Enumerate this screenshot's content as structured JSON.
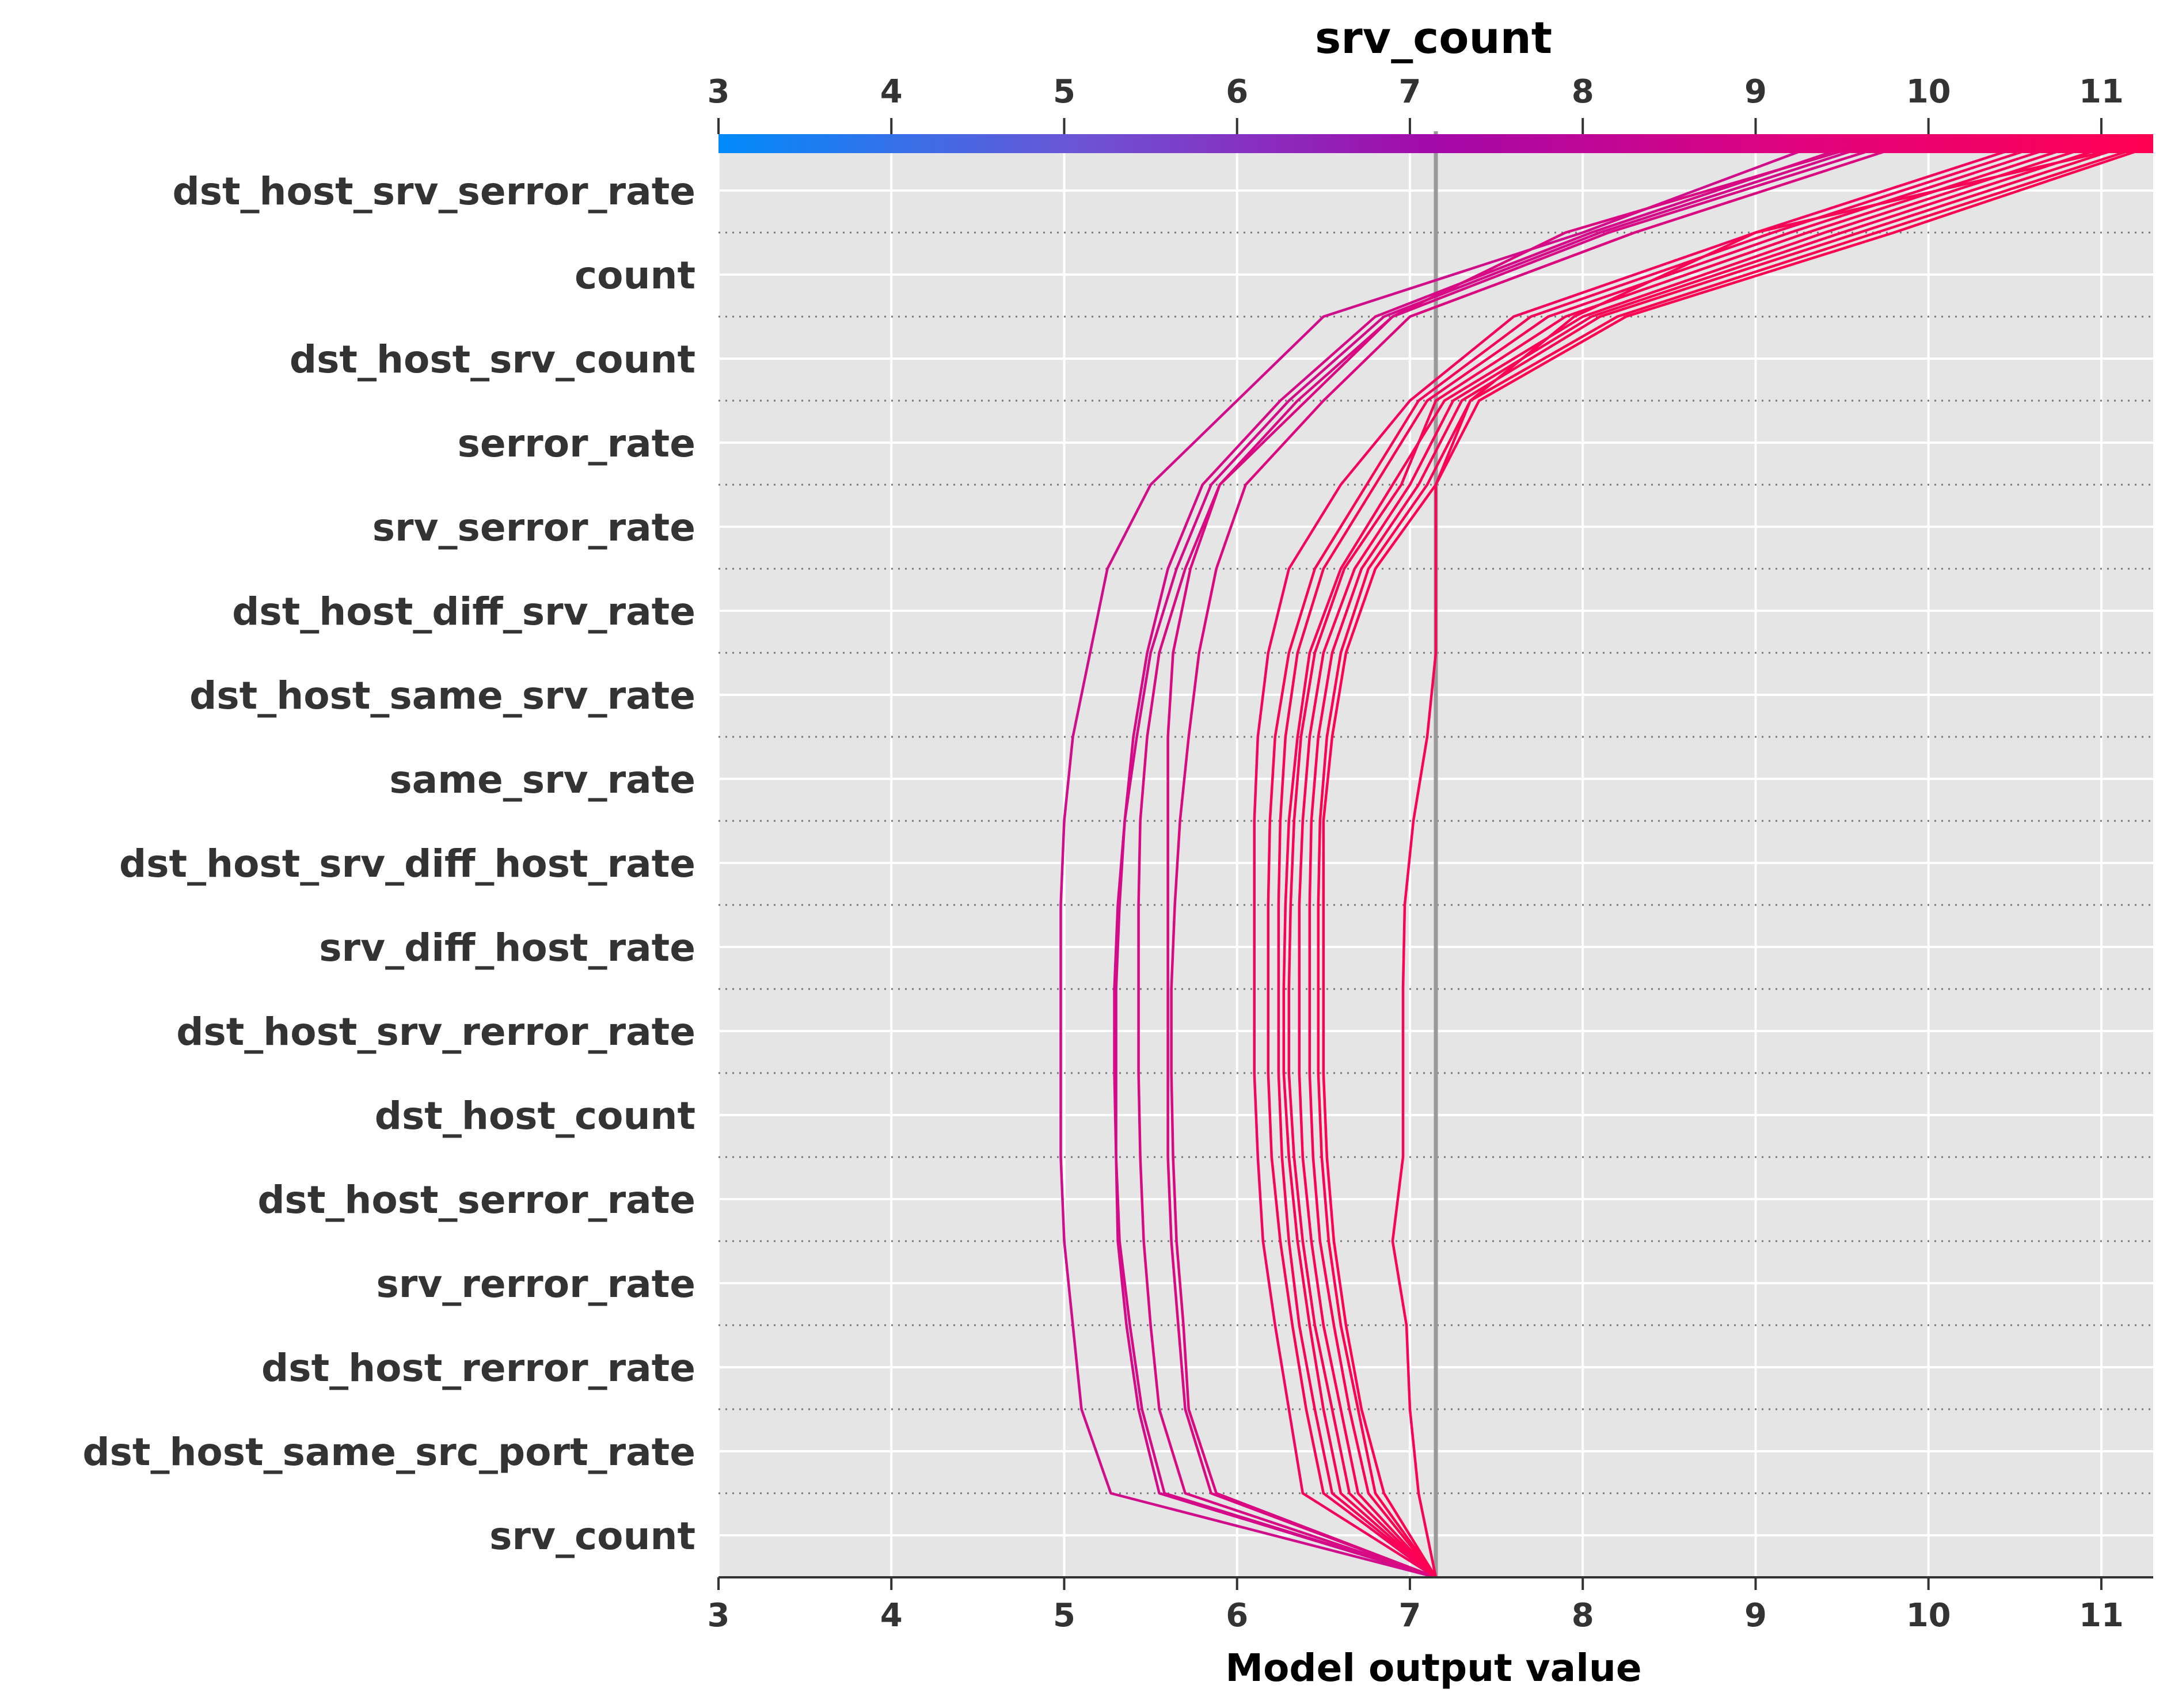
{
  "chart_data": {
    "type": "line",
    "subtype": "shap-decision-plot",
    "title": "srv_count",
    "xlabel": "Model output value",
    "xlim": [
      3,
      11.3
    ],
    "xticks": [
      3,
      4,
      5,
      6,
      7,
      8,
      9,
      10,
      11
    ],
    "xtick_labels": [
      "3",
      "4",
      "5",
      "6",
      "7",
      "8",
      "9",
      "10",
      "11"
    ],
    "base_value": 7.15,
    "grid": true,
    "colorbar": {
      "position": "top",
      "feature": "srv_count",
      "range": [
        3,
        11.3
      ],
      "colors": [
        "#008bfb",
        "#6b55d5",
        "#a409a9",
        "#e0037e",
        "#ff0052"
      ]
    },
    "features": [
      "dst_host_srv_serror_rate",
      "count",
      "dst_host_srv_count",
      "serror_rate",
      "srv_serror_rate",
      "dst_host_diff_srv_rate",
      "dst_host_same_srv_rate",
      "same_srv_rate",
      "dst_host_srv_diff_host_rate",
      "srv_diff_host_rate",
      "dst_host_srv_rerror_rate",
      "dst_host_count",
      "dst_host_serror_rate",
      "srv_rerror_rate",
      "dst_host_rerror_rate",
      "dst_host_same_src_port_rate",
      "srv_count"
    ],
    "series": [
      {
        "color": "#d00d8a",
        "values": [
          9.3,
          8.0,
          6.5,
          6.0,
          5.5,
          5.25,
          5.15,
          5.05,
          5.0,
          4.98,
          4.98,
          4.98,
          4.98,
          5.0,
          5.05,
          5.1,
          5.27,
          7.15
        ]
      },
      {
        "color": "#d50a86",
        "values": [
          9.5,
          8.05,
          6.8,
          6.25,
          5.8,
          5.6,
          5.48,
          5.4,
          5.35,
          5.32,
          5.3,
          5.3,
          5.3,
          5.32,
          5.38,
          5.45,
          5.58,
          7.15
        ]
      },
      {
        "color": "#d30b88",
        "values": [
          9.6,
          8.1,
          6.85,
          6.3,
          5.85,
          5.65,
          5.5,
          5.42,
          5.35,
          5.31,
          5.29,
          5.29,
          5.3,
          5.31,
          5.36,
          5.43,
          5.55,
          7.15
        ]
      },
      {
        "color": "#d70a84",
        "values": [
          9.7,
          8.15,
          6.9,
          6.35,
          5.9,
          5.7,
          5.55,
          5.48,
          5.44,
          5.43,
          5.43,
          5.43,
          5.44,
          5.46,
          5.5,
          5.55,
          5.7,
          7.15
        ]
      },
      {
        "color": "#da0980",
        "values": [
          9.8,
          8.3,
          7.0,
          6.5,
          6.05,
          5.88,
          5.78,
          5.72,
          5.67,
          5.64,
          5.62,
          5.62,
          5.63,
          5.65,
          5.69,
          5.72,
          5.88,
          7.15
        ]
      },
      {
        "color": "#d90982",
        "values": [
          9.55,
          7.9,
          6.9,
          6.4,
          5.9,
          5.73,
          5.63,
          5.6,
          5.6,
          5.6,
          5.6,
          5.6,
          5.6,
          5.62,
          5.66,
          5.7,
          5.85,
          7.15
        ]
      },
      {
        "color": "#f4045f",
        "values": [
          10.5,
          9.0,
          7.6,
          7.0,
          6.6,
          6.3,
          6.18,
          6.12,
          6.1,
          6.1,
          6.1,
          6.1,
          6.12,
          6.15,
          6.22,
          6.3,
          6.38,
          7.15
        ]
      },
      {
        "color": "#f70359",
        "values": [
          10.7,
          9.2,
          7.8,
          7.1,
          6.8,
          6.5,
          6.35,
          6.28,
          6.25,
          6.24,
          6.24,
          6.24,
          6.26,
          6.3,
          6.36,
          6.45,
          6.55,
          7.15
        ]
      },
      {
        "color": "#fa0256",
        "values": [
          10.9,
          9.4,
          8.0,
          7.2,
          6.9,
          6.6,
          6.42,
          6.35,
          6.3,
          6.28,
          6.27,
          6.27,
          6.3,
          6.35,
          6.42,
          6.5,
          6.6,
          7.15
        ]
      },
      {
        "color": "#f90257",
        "values": [
          10.8,
          9.3,
          7.9,
          7.15,
          6.95,
          6.62,
          6.45,
          6.37,
          6.33,
          6.31,
          6.3,
          6.3,
          6.33,
          6.38,
          6.45,
          6.55,
          6.65,
          7.15
        ]
      },
      {
        "color": "#fc0154",
        "values": [
          11.0,
          9.5,
          8.05,
          7.25,
          7.0,
          6.68,
          6.5,
          6.42,
          6.38,
          6.36,
          6.36,
          6.36,
          6.38,
          6.43,
          6.5,
          6.6,
          6.7,
          7.15
        ]
      },
      {
        "color": "#fd0153",
        "values": [
          11.1,
          9.6,
          8.1,
          7.3,
          7.05,
          6.72,
          6.55,
          6.47,
          6.43,
          6.42,
          6.42,
          6.42,
          6.44,
          6.48,
          6.56,
          6.65,
          6.76,
          7.15
        ]
      },
      {
        "color": "#fe0152",
        "values": [
          11.2,
          9.7,
          8.2,
          7.35,
          7.1,
          6.76,
          6.6,
          6.52,
          6.48,
          6.47,
          6.47,
          6.47,
          6.49,
          6.53,
          6.6,
          6.7,
          6.8,
          7.15
        ]
      },
      {
        "color": "#ff0052",
        "values": [
          11.25,
          9.8,
          8.25,
          7.4,
          7.15,
          6.8,
          6.63,
          6.55,
          6.5,
          6.5,
          6.5,
          6.5,
          6.52,
          6.56,
          6.63,
          6.72,
          6.85,
          7.15
        ]
      },
      {
        "color": "#f8035a",
        "values": [
          10.6,
          9.1,
          7.7,
          7.05,
          6.75,
          6.45,
          6.3,
          6.22,
          6.19,
          6.18,
          6.18,
          6.18,
          6.2,
          6.25,
          6.32,
          6.4,
          6.5,
          7.15
        ]
      },
      {
        "color": "#fb0255",
        "values": [
          11.1,
          9.0,
          7.95,
          7.35,
          7.15,
          7.15,
          7.15,
          7.1,
          7.02,
          6.97,
          6.96,
          6.96,
          6.96,
          6.9,
          6.98,
          7.0,
          7.05,
          7.15
        ]
      }
    ]
  }
}
